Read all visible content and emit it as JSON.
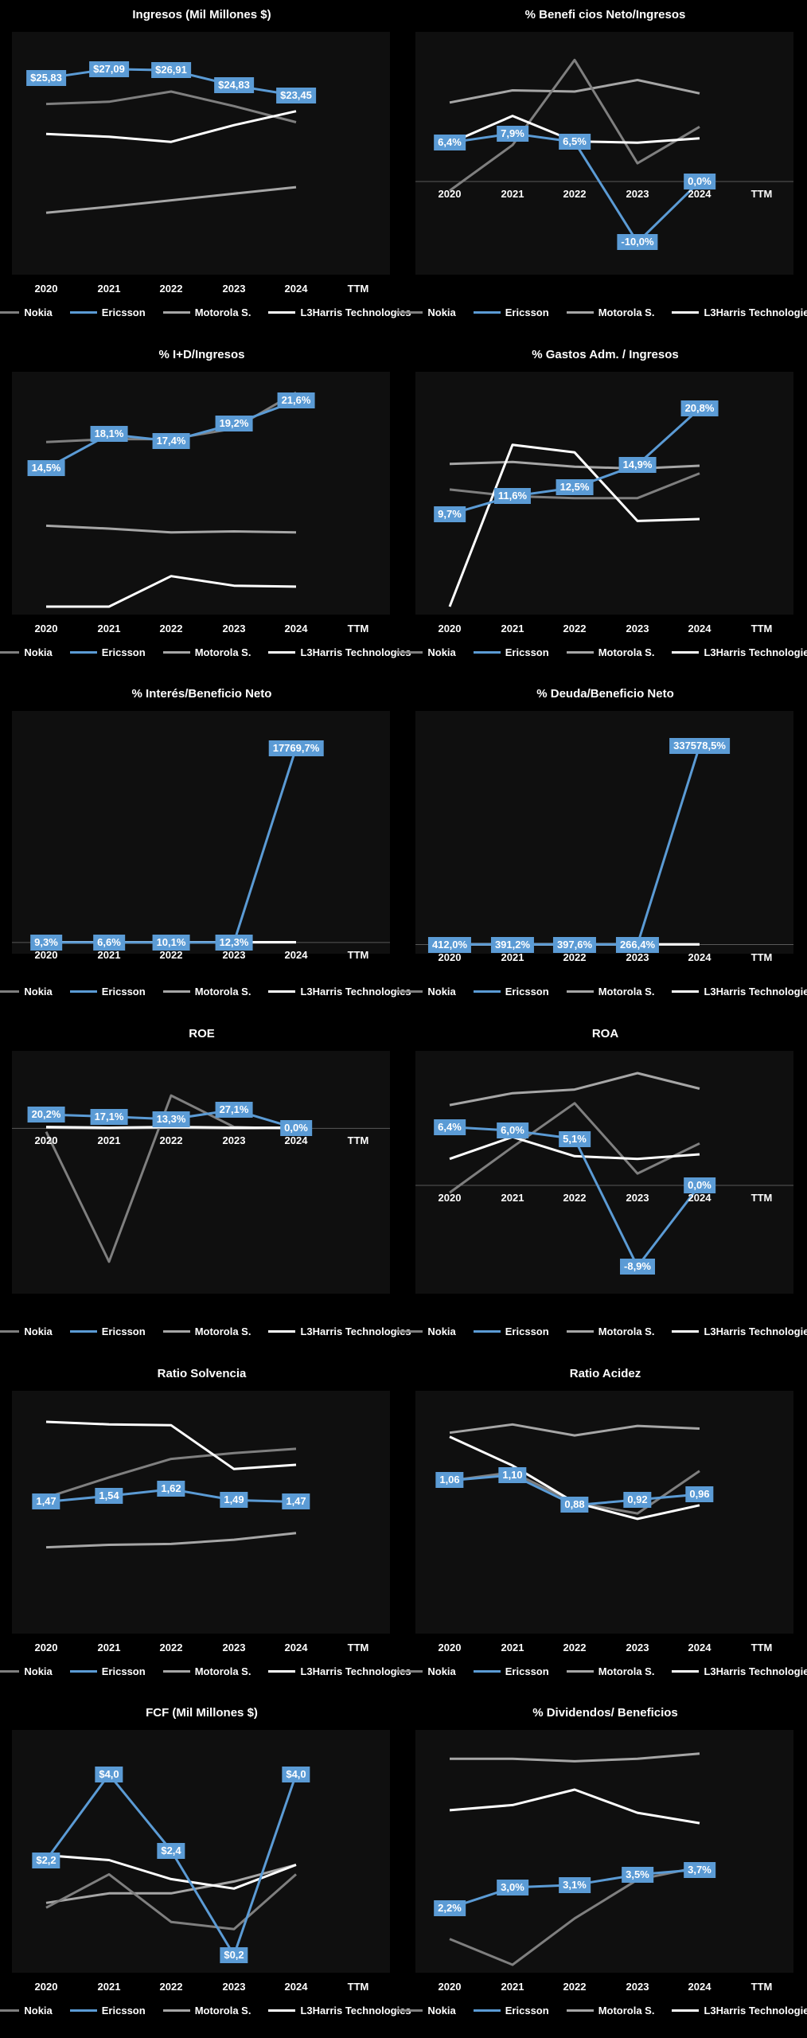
{
  "colors": {
    "Nokia": "#7f7f7f",
    "Ericsson": "#5b9bd5",
    "Motorola S.": "#a6a6a6",
    "L3Harris Technologies": "#ffffff"
  },
  "legend": [
    "Nokia",
    "Ericsson",
    "Motorola S.",
    "L3Harris Technologies"
  ],
  "chart_data": [
    {
      "type": "line",
      "title": "Ingresos (Mil Millones $)",
      "categories": [
        "2020",
        "2021",
        "2022",
        "2023",
        "2024",
        "TTM"
      ],
      "ylim": [
        0,
        30
      ],
      "zero_line": false,
      "labels": [
        "$25,83",
        "$27,09",
        "$26,91",
        "$24,83",
        "$23,45"
      ],
      "series": [
        {
          "name": "Nokia",
          "values": [
            22.3,
            22.6,
            24.0,
            22.0,
            19.8
          ]
        },
        {
          "name": "Ericsson",
          "values": [
            25.83,
            27.09,
            26.91,
            24.83,
            23.45
          ]
        },
        {
          "name": "Motorola S.",
          "values": [
            7.4,
            8.2,
            9.1,
            10.0,
            10.9
          ]
        },
        {
          "name": "L3Harris Technologies",
          "values": [
            18.2,
            17.8,
            17.1,
            19.4,
            21.3
          ]
        }
      ]
    },
    {
      "type": "line",
      "title": "% Benefi cios Neto/Ingresos",
      "categories": [
        "2020",
        "2021",
        "2022",
        "2023",
        "2024",
        "TTM"
      ],
      "ylim": [
        -14,
        22
      ],
      "zero_line": true,
      "labels": [
        "6,4%",
        "7,9%",
        "6,5%",
        "-10,0%",
        "0,0%"
      ],
      "series": [
        {
          "name": "Nokia",
          "values": [
            -1.5,
            6.0,
            20.0,
            3.0,
            9.0
          ]
        },
        {
          "name": "Ericsson",
          "values": [
            6.4,
            7.9,
            6.5,
            -10.0,
            0.0
          ]
        },
        {
          "name": "Motorola S.",
          "values": [
            13.0,
            15.0,
            14.8,
            16.7,
            14.5
          ]
        },
        {
          "name": "L3Harris Technologies",
          "values": [
            6.3,
            10.8,
            6.6,
            6.4,
            7.1
          ]
        }
      ]
    },
    {
      "type": "line",
      "title": "% I+D/Ingresos",
      "categories": [
        "2020",
        "2021",
        "2022",
        "2023",
        "2024",
        "TTM"
      ],
      "ylim": [
        0,
        23
      ],
      "zero_line": false,
      "labels": [
        "14,5%",
        "18,1%",
        "17,4%",
        "19,2%",
        "21,6%"
      ],
      "series": [
        {
          "name": "Nokia",
          "values": [
            17.3,
            17.6,
            17.6,
            18.7,
            22.5
          ]
        },
        {
          "name": "Ericsson",
          "values": [
            14.5,
            18.1,
            17.4,
            19.2,
            21.6
          ]
        },
        {
          "name": "Motorola S.",
          "values": [
            8.5,
            8.2,
            7.8,
            7.9,
            7.8
          ]
        },
        {
          "name": "L3Harris Technologies",
          "values": [
            0.0,
            0.0,
            3.2,
            2.2,
            2.1
          ]
        }
      ]
    },
    {
      "type": "line",
      "title": "% Gastos Adm. / Ingresos",
      "categories": [
        "2020",
        "2021",
        "2022",
        "2023",
        "2024",
        "TTM"
      ],
      "ylim": [
        0,
        23
      ],
      "zero_line": false,
      "labels": [
        "9,7%",
        "11,6%",
        "12,5%",
        "14,9%",
        "20,8%"
      ],
      "series": [
        {
          "name": "Nokia",
          "values": [
            12.3,
            11.6,
            11.4,
            11.4,
            14.0
          ]
        },
        {
          "name": "Ericsson",
          "values": [
            9.7,
            11.6,
            12.5,
            14.9,
            20.8
          ]
        },
        {
          "name": "Motorola S.",
          "values": [
            15.0,
            15.2,
            14.7,
            14.5,
            14.8
          ]
        },
        {
          "name": "L3Harris Technologies",
          "values": [
            0.0,
            17.0,
            16.2,
            9.0,
            9.2
          ]
        }
      ]
    },
    {
      "type": "line",
      "title": "% Interés/Beneficio Neto",
      "categories": [
        "2020",
        "2021",
        "2022",
        "2023",
        "2024",
        "TTM"
      ],
      "ylim": [
        -300,
        19700
      ],
      "zero_line": true,
      "labels": [
        "9,3%",
        "6,6%",
        "10,1%",
        "12,3%",
        "17769,7%"
      ],
      "series": [
        {
          "name": "Nokia",
          "values": [
            0,
            0,
            0,
            0,
            0
          ]
        },
        {
          "name": "Ericsson",
          "values": [
            9.3,
            6.6,
            10.1,
            12.3,
            17769.7
          ]
        },
        {
          "name": "Motorola S.",
          "values": [
            20,
            15,
            18,
            20,
            20
          ]
        },
        {
          "name": "L3Harris Technologies",
          "values": [
            25,
            30,
            20,
            25,
            30
          ]
        }
      ]
    },
    {
      "type": "line",
      "title": "% Deuda/Beneficio Neto",
      "categories": [
        "2020",
        "2021",
        "2022",
        "2023",
        "2024",
        "TTM"
      ],
      "ylim": [
        -2000,
        370000
      ],
      "zero_line": true,
      "labels": [
        "412,0%",
        "391,2%",
        "397,6%",
        "266,4%",
        "337578,5%"
      ],
      "series": [
        {
          "name": "Nokia",
          "values": [
            400,
            400,
            400,
            400,
            400
          ]
        },
        {
          "name": "Ericsson",
          "values": [
            412.0,
            391.2,
            397.6,
            266.4,
            337578.5
          ]
        },
        {
          "name": "Motorola S.",
          "values": [
            400,
            450,
            400,
            400,
            400
          ]
        },
        {
          "name": "L3Harris Technologies",
          "values": [
            400,
            400,
            400,
            400,
            400
          ]
        }
      ]
    },
    {
      "type": "line",
      "title": "ROE",
      "categories": [
        "2020",
        "2021",
        "2022",
        "2023",
        "2024",
        "TTM"
      ],
      "ylim": [
        -230,
        90
      ],
      "zero_line": true,
      "labels": [
        "20,2%",
        "17,1%",
        "13,3%",
        "27,1%",
        "0,0%"
      ],
      "series": [
        {
          "name": "Nokia",
          "values": [
            -5,
            -195,
            48,
            2,
            -1
          ]
        },
        {
          "name": "Ericsson",
          "values": [
            20.2,
            17.1,
            13.3,
            27.1,
            0.0
          ]
        },
        {
          "name": "Motorola S.",
          "values": [
            1,
            0,
            1,
            0,
            0
          ]
        },
        {
          "name": "L3Harris Technologies",
          "values": [
            2,
            1,
            2,
            1,
            1
          ]
        }
      ]
    },
    {
      "type": "line",
      "title": "ROA",
      "categories": [
        "2020",
        "2021",
        "2022",
        "2023",
        "2024",
        "TTM"
      ],
      "ylim": [
        -11,
        13
      ],
      "zero_line": true,
      "labels": [
        "6,4%",
        "6,0%",
        "5,1%",
        "-8,9%",
        "0,0%"
      ],
      "series": [
        {
          "name": "Nokia",
          "values": [
            -0.8,
            4.2,
            9.0,
            1.3,
            4.6
          ]
        },
        {
          "name": "Ericsson",
          "values": [
            6.4,
            6.0,
            5.1,
            -8.9,
            0.0
          ]
        },
        {
          "name": "Motorola S.",
          "values": [
            8.8,
            10.1,
            10.5,
            12.3,
            10.6
          ]
        },
        {
          "name": "L3Harris Technologies",
          "values": [
            2.9,
            5.3,
            3.2,
            2.9,
            3.4
          ]
        }
      ]
    },
    {
      "type": "line",
      "title": "Ratio Solvencia",
      "categories": [
        "2020",
        "2021",
        "2022",
        "2023",
        "2024",
        "TTM"
      ],
      "ylim": [
        0,
        2.6
      ],
      "zero_line": false,
      "labels": [
        "1,47",
        "1,54",
        "1,62",
        "1,49",
        "1,47"
      ],
      "series": [
        {
          "name": "Nokia",
          "values": [
            1.52,
            1.76,
            1.98,
            2.05,
            2.1
          ]
        },
        {
          "name": "Ericsson",
          "values": [
            1.47,
            1.54,
            1.62,
            1.49,
            1.47
          ]
        },
        {
          "name": "Motorola S.",
          "values": [
            0.93,
            0.96,
            0.97,
            1.02,
            1.1
          ]
        },
        {
          "name": "L3Harris Technologies",
          "values": [
            2.42,
            2.39,
            2.38,
            1.86,
            1.91
          ]
        }
      ]
    },
    {
      "type": "line",
      "title": "Ratio Acidez",
      "categories": [
        "2020",
        "2021",
        "2022",
        "2023",
        "2024",
        "TTM"
      ],
      "ylim": [
        0,
        1.6
      ],
      "zero_line": false,
      "labels": [
        "1,06",
        "1,10",
        "0,88",
        "0,92",
        "0,96"
      ],
      "series": [
        {
          "name": "Nokia",
          "values": [
            1.06,
            1.12,
            0.9,
            0.82,
            1.13
          ]
        },
        {
          "name": "Ericsson",
          "values": [
            1.06,
            1.1,
            0.88,
            0.92,
            0.96
          ]
        },
        {
          "name": "Motorola S.",
          "values": [
            1.41,
            1.47,
            1.39,
            1.46,
            1.44
          ]
        },
        {
          "name": "L3Harris Technologies",
          "values": [
            1.38,
            1.17,
            0.9,
            0.78,
            0.88
          ]
        }
      ]
    },
    {
      "type": "line",
      "title": "FCF (Mil Millones $)",
      "categories": [
        "2020",
        "2021",
        "2022",
        "2023",
        "2024",
        "TTM"
      ],
      "ylim": [
        0,
        4.6
      ],
      "zero_line": false,
      "labels": [
        "$2,2",
        "$4,0",
        "$2,4",
        "$0,2",
        "$4,0"
      ],
      "series": [
        {
          "name": "Nokia",
          "values": [
            1.2,
            1.9,
            0.9,
            0.75,
            1.9
          ]
        },
        {
          "name": "Ericsson",
          "values": [
            2.2,
            4.0,
            2.4,
            0.2,
            4.0
          ]
        },
        {
          "name": "Motorola S.",
          "values": [
            1.3,
            1.5,
            1.5,
            1.75,
            2.1
          ]
        },
        {
          "name": "L3Harris Technologies",
          "values": [
            2.3,
            2.2,
            1.8,
            1.6,
            2.1
          ]
        }
      ]
    },
    {
      "type": "line",
      "title": "% Dividendos/ Beneficios",
      "categories": [
        "2020",
        "2021",
        "2022",
        "2023",
        "2024",
        "TTM"
      ],
      "ylim": [
        0,
        8.5
      ],
      "zero_line": false,
      "labels": [
        "2,2%",
        "3,0%",
        "3,1%",
        "3,5%",
        "3,7%"
      ],
      "series": [
        {
          "name": "Nokia",
          "values": [
            1.0,
            0.0,
            1.8,
            3.3,
            3.8
          ]
        },
        {
          "name": "Ericsson",
          "values": [
            2.2,
            3.0,
            3.1,
            3.5,
            3.7
          ]
        },
        {
          "name": "Motorola S.",
          "values": [
            8.0,
            8.0,
            7.9,
            8.0,
            8.2
          ]
        },
        {
          "name": "L3Harris Technologies",
          "values": [
            6.0,
            6.2,
            6.8,
            5.9,
            5.5
          ]
        }
      ]
    }
  ]
}
